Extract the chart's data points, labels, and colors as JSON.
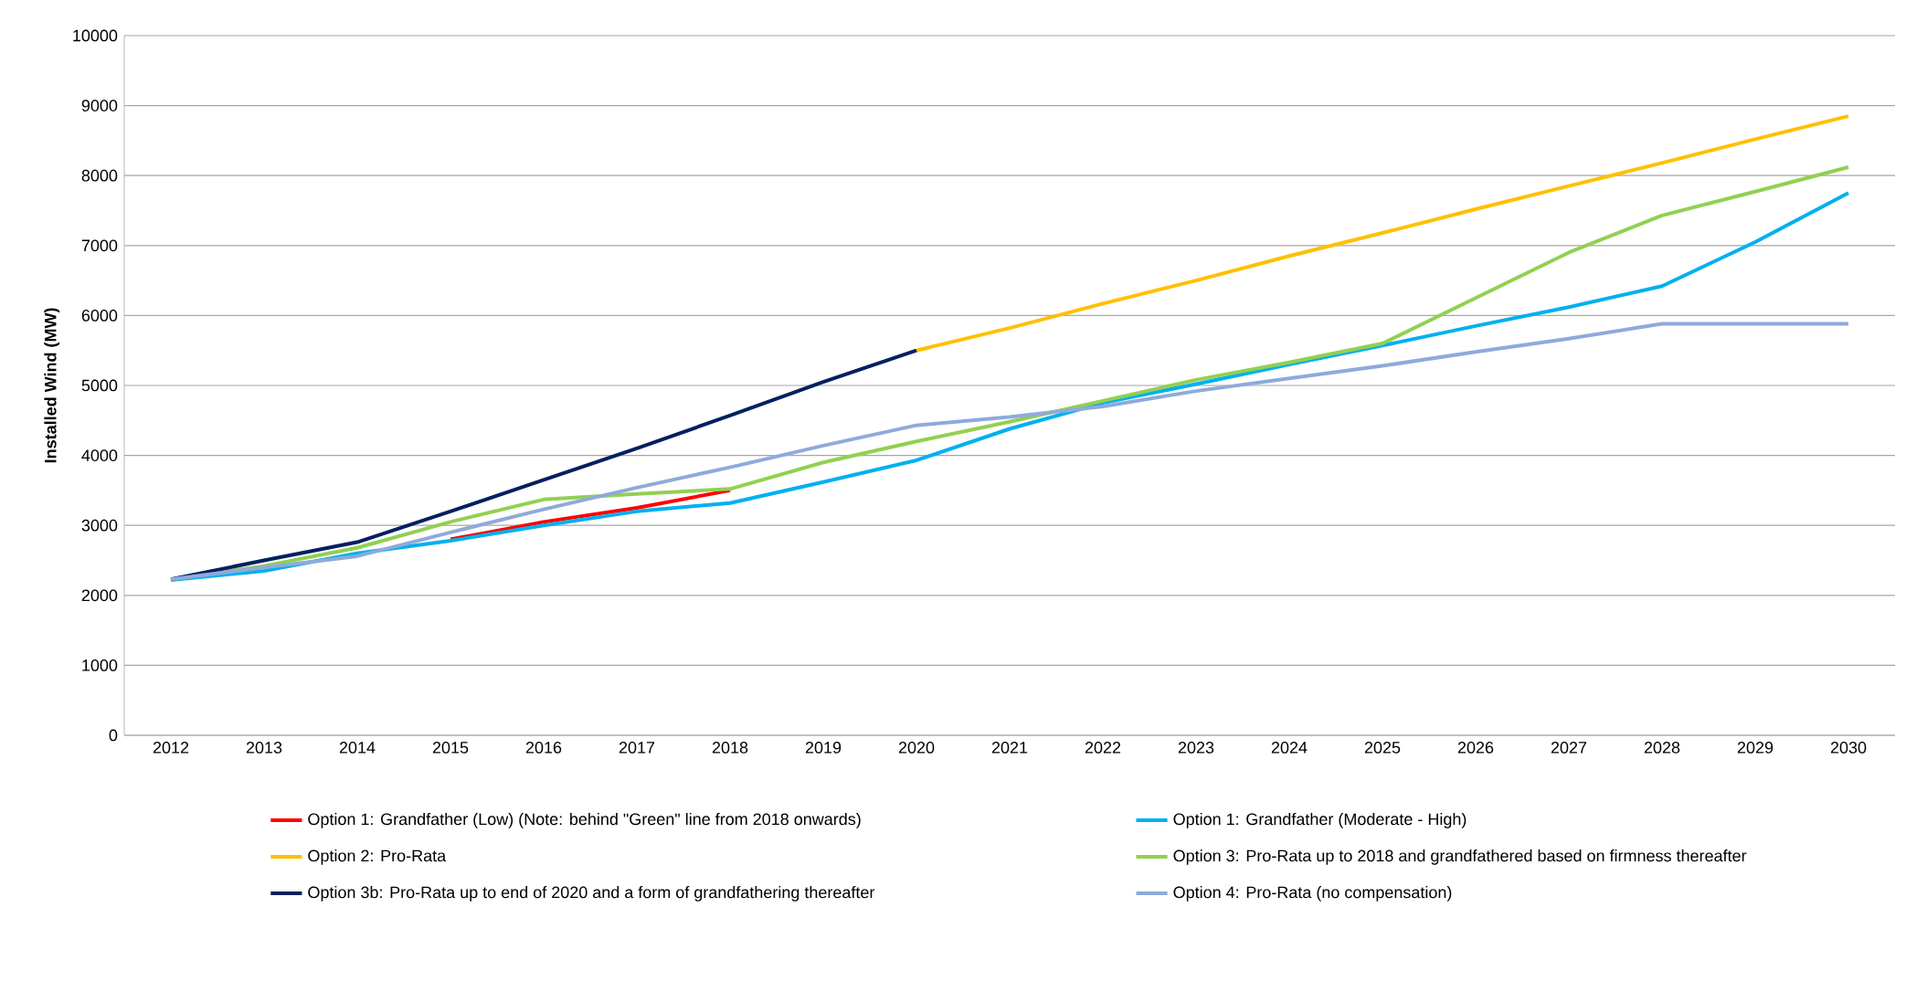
{
  "chart_data": {
    "type": "line",
    "ylabel": "Installed Wind (MW)",
    "categories": [
      "2012",
      "2013",
      "2014",
      "2015",
      "2016",
      "2017",
      "2018",
      "2019",
      "2020",
      "2021",
      "2022",
      "2023",
      "2024",
      "2025",
      "2026",
      "2027",
      "2028",
      "2029",
      "2030"
    ],
    "ylim": [
      0,
      10000
    ],
    "yticks": [
      0,
      1000,
      2000,
      3000,
      4000,
      5000,
      6000,
      7000,
      8000,
      9000,
      10000
    ],
    "grid": "y",
    "legend": "bottom",
    "marker": "none",
    "line_style": "solid",
    "series": [
      {
        "name": "Option 1: Grandfather (Low) (Note: behind \"Green\" line from 2018 onwards)",
        "color": "#ff0000",
        "values": [
          null,
          null,
          null,
          2800,
          3050,
          3250,
          3500,
          null,
          null,
          null,
          null,
          null,
          null,
          null,
          null,
          null,
          null,
          null,
          null
        ]
      },
      {
        "name": "Option 1: Grandfather (Moderate - High)",
        "color": "#00b0f0",
        "values": [
          2220,
          2350,
          2600,
          2780,
          3000,
          3200,
          3320,
          3620,
          3930,
          4380,
          4750,
          5020,
          5300,
          5570,
          5850,
          6120,
          6420,
          7050,
          7750
        ]
      },
      {
        "name": "Option 2: Pro-Rata",
        "color": "#ffc000",
        "values": [
          null,
          null,
          null,
          null,
          null,
          null,
          null,
          null,
          5500,
          5820,
          6170,
          6500,
          6850,
          7180,
          7520,
          7850,
          8180,
          8520,
          8850
        ]
      },
      {
        "name": "Option 3: Pro-Rata up to 2018 and grandfathered based on firmness thereafter",
        "color": "#92d050",
        "values": [
          2230,
          2420,
          2680,
          3050,
          3370,
          3450,
          3520,
          3900,
          4200,
          4480,
          4780,
          5080,
          5330,
          5600,
          6250,
          6900,
          7430,
          7770,
          8120
        ]
      },
      {
        "name": "Option 3b: Pro-Rata up to end of 2020 and a form of grandfathering thereafter",
        "color": "#002060",
        "values": [
          2230,
          2500,
          2760,
          3200,
          3650,
          4100,
          4570,
          5050,
          5500,
          null,
          null,
          null,
          null,
          null,
          null,
          null,
          null,
          null,
          null
        ]
      },
      {
        "name": "Option 4: Pro-Rata (no compensation)",
        "color": "#8eaadb",
        "values": [
          2230,
          2400,
          2560,
          2900,
          3230,
          3540,
          3830,
          4140,
          4430,
          4550,
          4700,
          4920,
          5100,
          5280,
          5480,
          5670,
          5880,
          5880,
          5880
        ]
      }
    ]
  }
}
